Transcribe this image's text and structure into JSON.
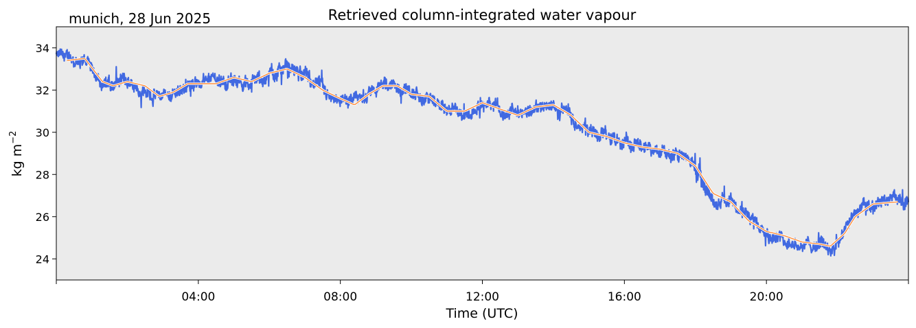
{
  "chart_data": {
    "type": "line",
    "title": "Retrieved column-integrated water vapour",
    "subtitle": "munich, 28 Jun 2025",
    "xlabel": "Time (UTC)",
    "ylabel": "kg m",
    "ylabel_exponent": "−2",
    "xlim_hours": [
      0,
      24
    ],
    "ylim": [
      23,
      35
    ],
    "x_ticks": [
      {
        "hour": 4,
        "label": "04:00"
      },
      {
        "hour": 8,
        "label": "08:00"
      },
      {
        "hour": 12,
        "label": "12:00"
      },
      {
        "hour": 16,
        "label": "16:00"
      },
      {
        "hour": 20,
        "label": "20:00"
      }
    ],
    "y_ticks": [
      24,
      26,
      28,
      30,
      32,
      34
    ],
    "grid": false,
    "background_color": "#ebebeb",
    "series": [
      {
        "style": "raw",
        "color": "#4169e1",
        "x_hours": [
          0,
          0.5,
          0.8,
          1.3,
          1.6,
          2.0,
          2.5,
          2.9,
          3.3,
          3.7,
          4.0,
          4.5,
          5.0,
          5.5,
          6.0,
          6.5,
          7.0,
          7.5,
          8.0,
          8.4,
          8.8,
          9.2,
          9.6,
          10.0,
          10.5,
          11.0,
          11.5,
          12.0,
          12.5,
          13.0,
          13.5,
          14.0,
          14.5,
          15.0,
          15.5,
          16.0,
          16.5,
          17.0,
          17.5,
          18.0,
          18.5,
          19.0,
          19.5,
          20.0,
          20.5,
          21.0,
          21.5,
          21.8,
          22.2,
          22.5,
          23.0,
          23.5,
          24.0
        ],
        "values": [
          33.6,
          33.4,
          33.5,
          32.4,
          32.2,
          32.4,
          32.2,
          31.7,
          31.9,
          32.3,
          32.3,
          32.3,
          32.6,
          32.4,
          32.8,
          33.0,
          32.6,
          32.0,
          31.6,
          31.3,
          31.8,
          32.2,
          32.2,
          31.8,
          31.7,
          31.0,
          31.0,
          31.4,
          31.1,
          30.8,
          31.2,
          31.3,
          30.8,
          30.0,
          29.8,
          29.5,
          29.3,
          29.2,
          29.0,
          28.4,
          27.1,
          26.7,
          25.8,
          25.3,
          25.1,
          24.8,
          24.7,
          24.6,
          25.2,
          26.0,
          26.6,
          26.7,
          27.0
        ]
      },
      {
        "style": "smoothed",
        "color": "#ff8c3a",
        "x_hours": [
          0.3,
          0.8,
          1.3,
          1.6,
          2.0,
          2.5,
          2.9,
          3.3,
          3.7,
          4.0,
          4.5,
          5.0,
          5.5,
          6.0,
          6.5,
          7.0,
          7.5,
          8.0,
          8.4,
          8.8,
          9.2,
          9.6,
          10.0,
          10.5,
          11.0,
          11.5,
          12.0,
          12.5,
          13.0,
          13.5,
          14.0,
          14.5,
          15.0,
          15.5,
          16.0,
          16.5,
          17.0,
          17.5,
          18.0,
          18.5,
          19.0,
          19.5,
          20.0,
          20.5,
          21.0,
          21.5,
          21.8,
          22.2,
          22.5,
          23.0,
          23.7
        ],
        "values": [
          33.4,
          33.5,
          32.4,
          32.2,
          32.4,
          32.2,
          31.7,
          31.9,
          32.3,
          32.3,
          32.3,
          32.6,
          32.4,
          32.8,
          33.0,
          32.6,
          32.0,
          31.6,
          31.3,
          31.8,
          32.2,
          32.2,
          31.8,
          31.7,
          31.0,
          31.0,
          31.4,
          31.1,
          30.8,
          31.2,
          31.3,
          30.8,
          30.0,
          29.8,
          29.5,
          29.3,
          29.2,
          29.0,
          28.4,
          27.1,
          26.7,
          25.8,
          25.3,
          25.1,
          24.8,
          24.7,
          24.6,
          25.2,
          26.0,
          26.6,
          26.7
        ]
      }
    ]
  }
}
